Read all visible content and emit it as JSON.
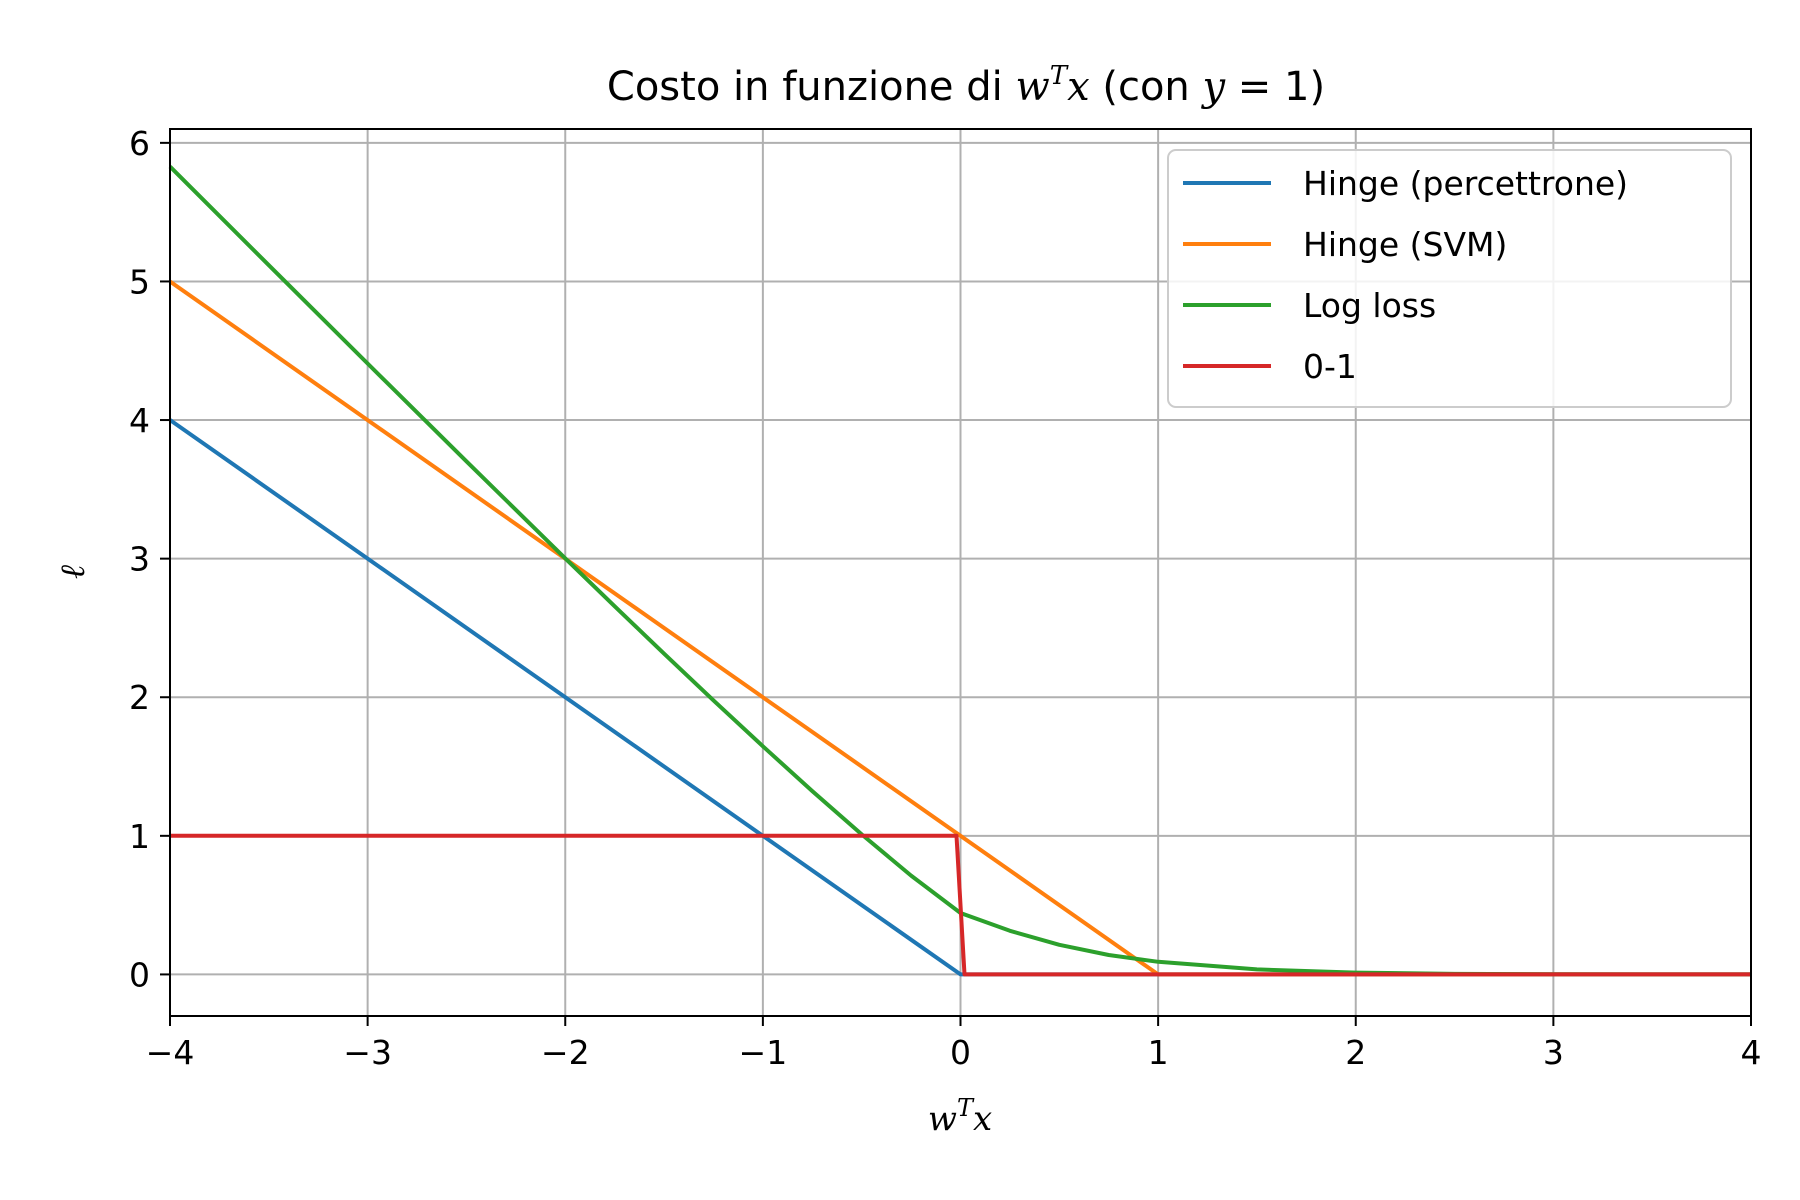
{
  "chart_data": {
    "type": "line",
    "title": {
      "main": "Costo in funzione di ",
      "var_base": "w",
      "var_sup": "T",
      "var_tail": "x",
      "cond_open": " (con ",
      "cond_var": "y",
      "cond_eq": " = 1)"
    },
    "xlabel": {
      "base": "w",
      "sup": "T",
      "tail": "x"
    },
    "ylabel": "ℓ",
    "xlim": [
      -4,
      4
    ],
    "ylim": [
      -0.3,
      6.1
    ],
    "xticks": [
      -4,
      -3,
      -2,
      -1,
      0,
      1,
      2,
      3,
      4
    ],
    "xtick_labels": [
      "−4",
      "−3",
      "−2",
      "−1",
      "0",
      "1",
      "2",
      "3",
      "4"
    ],
    "yticks": [
      0,
      1,
      2,
      3,
      4,
      5,
      6
    ],
    "ytick_labels": [
      "0",
      "1",
      "2",
      "3",
      "4",
      "5",
      "6"
    ],
    "grid": true,
    "legend_position": "top-right",
    "series": [
      {
        "name": "Hinge (percettrone)",
        "color": "#1f77b4",
        "x": [
          -4,
          0,
          4
        ],
        "y": [
          4,
          0,
          0
        ]
      },
      {
        "name": "Hinge (SVM)",
        "color": "#ff7f0e",
        "x": [
          -4,
          1,
          4
        ],
        "y": [
          5,
          0,
          0
        ]
      },
      {
        "name": "Log loss",
        "color": "#2ca02c",
        "x": [
          -4,
          -3.5,
          -3,
          -2.5,
          -2,
          -1.75,
          -1.5,
          -1.25,
          -1,
          -0.75,
          -0.5,
          -0.25,
          0,
          0.25,
          0.5,
          0.75,
          1,
          1.5,
          2,
          2.5,
          3,
          3.5,
          4
        ],
        "y": [
          5.829,
          5.117,
          4.408,
          3.702,
          3.002,
          2.656,
          2.314,
          1.977,
          1.646,
          1.323,
          1.01,
          0.713,
          0.443,
          0.315,
          0.214,
          0.14,
          0.091,
          0.036,
          0.013,
          0.004,
          0.001,
          0.0004,
          0.0001
        ]
      },
      {
        "name": "0-1",
        "color": "#d62728",
        "x": [
          -4,
          -0.02,
          0.02,
          4
        ],
        "y": [
          1,
          1,
          0,
          0
        ]
      }
    ]
  }
}
